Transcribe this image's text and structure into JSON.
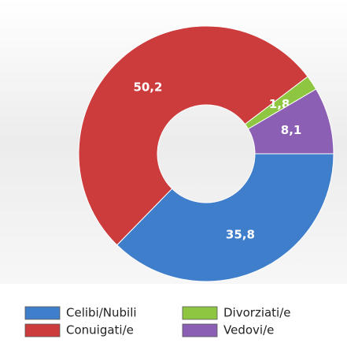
{
  "chart_data": {
    "type": "donut",
    "categories": [
      "Celibi/Nubili",
      "Conuigati/e",
      "Divorziati/e",
      "Vedovi/e"
    ],
    "values": [
      35.8,
      50.2,
      1.8,
      8.1
    ],
    "value_labels": [
      "35,8",
      "50,2",
      "1,8",
      "8,1"
    ],
    "colors": [
      "#3f7ecb",
      "#cd3c3c",
      "#8ec641",
      "#8b5fb3"
    ]
  }
}
